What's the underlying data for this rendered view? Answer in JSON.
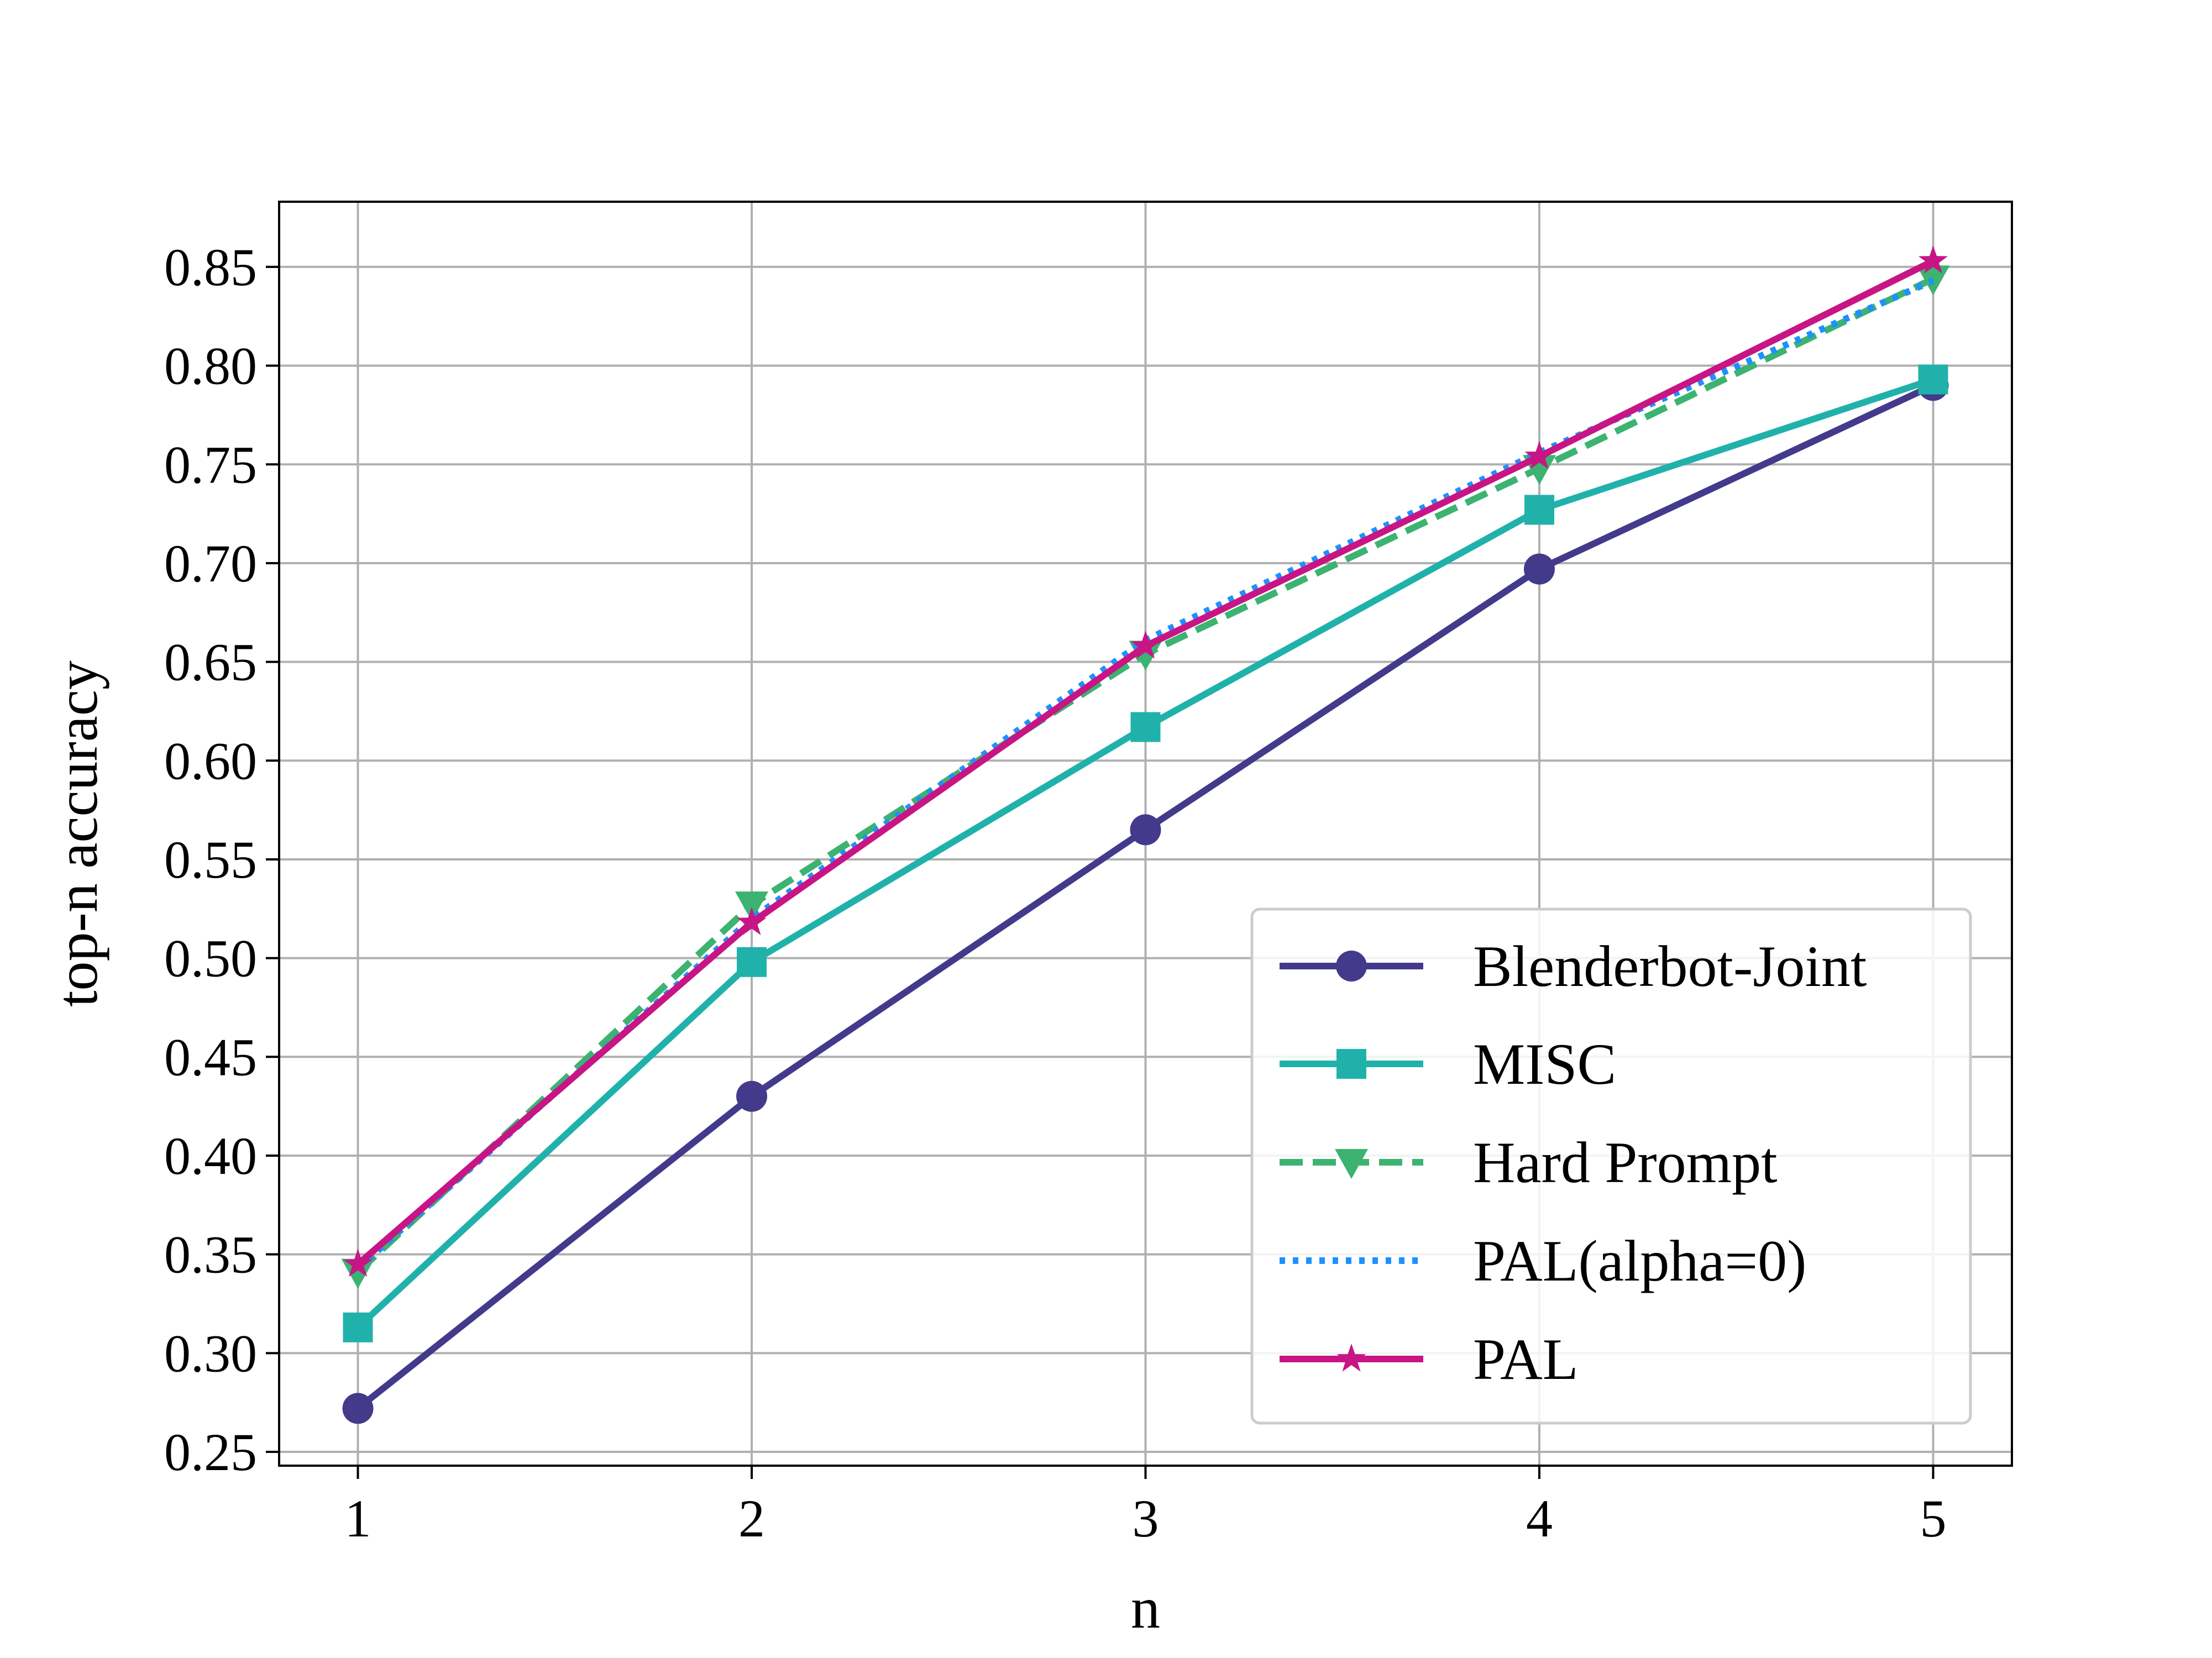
{
  "chart_data": {
    "type": "line",
    "title": "",
    "xlabel": "n",
    "ylabel": "top-n accuracy",
    "xlim": [
      0.8,
      5.2
    ],
    "ylim": [
      0.243,
      0.883
    ],
    "x": [
      1,
      2,
      3,
      4,
      5
    ],
    "x_tick_labels": [
      "1",
      "2",
      "3",
      "4",
      "5"
    ],
    "y_ticks": [
      0.25,
      0.3,
      0.35,
      0.4,
      0.45,
      0.5,
      0.55,
      0.6,
      0.65,
      0.7,
      0.75,
      0.8,
      0.85
    ],
    "y_tick_labels": [
      "0.25",
      "0.30",
      "0.35",
      "0.40",
      "0.45",
      "0.50",
      "0.55",
      "0.60",
      "0.65",
      "0.70",
      "0.75",
      "0.80",
      "0.85"
    ],
    "grid": true,
    "legend_position": "lower-right",
    "series": [
      {
        "name": "Blenderbot-Joint",
        "values": [
          0.272,
          0.43,
          0.565,
          0.697,
          0.79
        ],
        "color": "#433a8b",
        "linestyle": "solid",
        "marker": "circle"
      },
      {
        "name": "MISC",
        "values": [
          0.313,
          0.498,
          0.617,
          0.727,
          0.793
        ],
        "color": "#20b2aa",
        "linestyle": "solid",
        "marker": "square"
      },
      {
        "name": "Hard Prompt",
        "values": [
          0.341,
          0.527,
          0.654,
          0.748,
          0.844
        ],
        "color": "#3cb371",
        "linestyle": "dashed",
        "marker": "triangle-down"
      },
      {
        "name": "PAL(alpha=0)",
        "values": [
          0.343,
          0.52,
          0.661,
          0.756,
          0.843
        ],
        "color": "#1e90ff",
        "linestyle": "dotted",
        "marker": "none"
      },
      {
        "name": "PAL",
        "values": [
          0.345,
          0.518,
          0.658,
          0.754,
          0.853
        ],
        "color": "#c71585",
        "linestyle": "solid",
        "marker": "star"
      }
    ]
  }
}
